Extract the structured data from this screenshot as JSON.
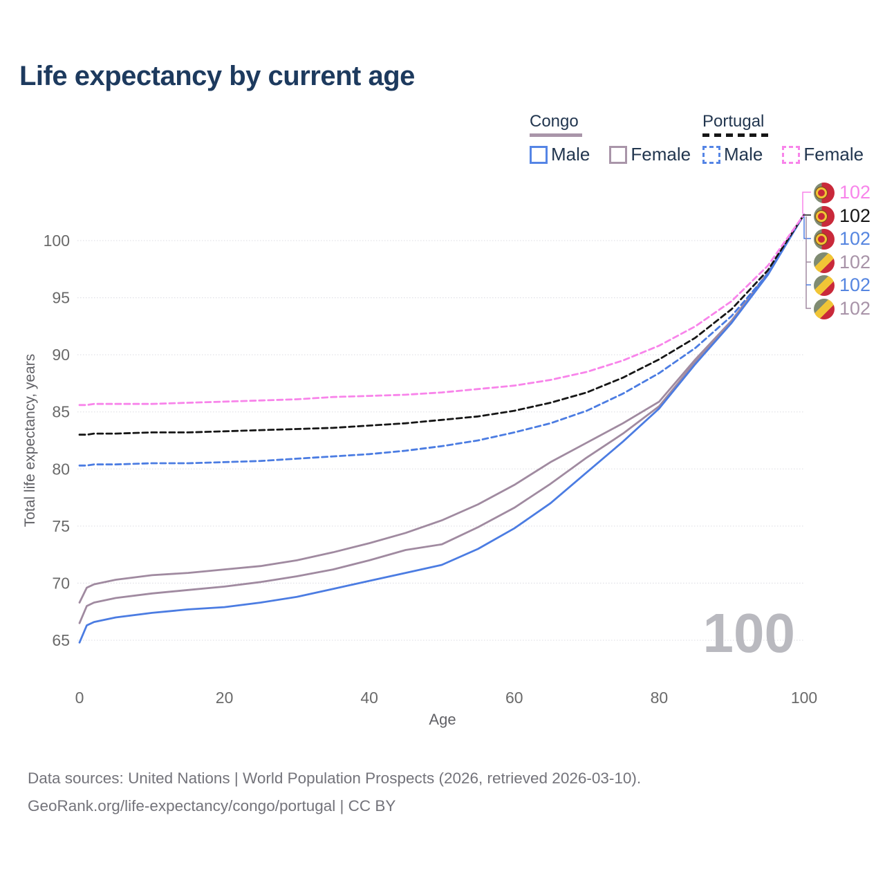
{
  "title": "Life expectancy by current age",
  "legend": {
    "congo": {
      "header": "Congo",
      "male": "Male",
      "female": "Female"
    },
    "portugal": {
      "header": "Portugal",
      "male": "Male",
      "female": "Female"
    }
  },
  "colors": {
    "blue": "#4b7ce2",
    "mauve": "#a08aa0",
    "pink": "#f884ea",
    "black": "#161616",
    "blue_label": "#5585e0",
    "mauve_label": "#a893a8",
    "grid": "#e2e2e7",
    "tick_text": "#6a6a6a",
    "title_text": "#1d3a5e",
    "watermark": "#b9b9bf",
    "flag_green": "#7f8b72",
    "flag_red": "#c9293a",
    "flag_yellow": "#f1c536"
  },
  "watermark": "100",
  "chart_data": {
    "type": "line",
    "title": "Life expectancy by current age",
    "xlabel": "Age",
    "ylabel": "Total life expectancy, years",
    "xlim": [
      0,
      100
    ],
    "ylim": [
      64,
      103
    ],
    "x_ticks": [
      0,
      20,
      40,
      60,
      80,
      100
    ],
    "y_ticks": [
      65,
      70,
      75,
      80,
      85,
      90,
      95,
      100
    ],
    "grid": "horizontal-dotted",
    "legend_position": "top-right",
    "ages": [
      0,
      1,
      2,
      5,
      10,
      15,
      20,
      25,
      30,
      35,
      40,
      45,
      50,
      55,
      60,
      65,
      70,
      75,
      80,
      85,
      90,
      95,
      100
    ],
    "series": [
      {
        "name": "Congo Female",
        "country": "Congo",
        "sex": "Female",
        "style": "solid",
        "color": "#a08aa0",
        "values": [
          68.3,
          69.6,
          69.9,
          70.3,
          70.7,
          70.9,
          71.2,
          71.5,
          72.0,
          72.7,
          73.5,
          74.4,
          75.5,
          76.9,
          78.6,
          80.6,
          82.3,
          84.0,
          85.9,
          89.6,
          93.0,
          97.2,
          102.3
        ]
      },
      {
        "name": "Congo",
        "country": "Congo",
        "sex": "Both",
        "style": "solid",
        "color": "#a08aa0",
        "values": [
          66.5,
          68.0,
          68.3,
          68.7,
          69.1,
          69.4,
          69.7,
          70.1,
          70.6,
          71.2,
          72.0,
          72.9,
          73.4,
          74.9,
          76.6,
          78.7,
          81.0,
          83.1,
          85.5,
          89.4,
          92.9,
          97.1,
          102.3
        ]
      },
      {
        "name": "Congo Male",
        "country": "Congo",
        "sex": "Male",
        "style": "solid",
        "color": "#4b7ce2",
        "values": [
          64.8,
          66.3,
          66.6,
          67.0,
          67.4,
          67.7,
          67.9,
          68.3,
          68.8,
          69.5,
          70.2,
          70.9,
          71.6,
          73.0,
          74.8,
          77.0,
          79.7,
          82.4,
          85.3,
          89.2,
          92.8,
          97.0,
          102.3
        ]
      },
      {
        "name": "Portugal Male",
        "country": "Portugal",
        "sex": "Male",
        "style": "dashed",
        "color": "#4b7ce2",
        "values": [
          80.3,
          80.3,
          80.4,
          80.4,
          80.5,
          80.5,
          80.6,
          80.7,
          80.9,
          81.1,
          81.3,
          81.6,
          82.0,
          82.5,
          83.2,
          84.0,
          85.1,
          86.6,
          88.4,
          90.6,
          93.4,
          97.1,
          102.3
        ]
      },
      {
        "name": "Portugal",
        "country": "Portugal",
        "sex": "Both",
        "style": "dashed",
        "color": "#161616",
        "values": [
          83.0,
          83.0,
          83.1,
          83.1,
          83.2,
          83.2,
          83.3,
          83.4,
          83.5,
          83.6,
          83.8,
          84.0,
          84.3,
          84.6,
          85.1,
          85.8,
          86.7,
          88.0,
          89.6,
          91.5,
          94.0,
          97.4,
          102.3
        ]
      },
      {
        "name": "Portugal Female",
        "country": "Portugal",
        "sex": "Female",
        "style": "dashed",
        "color": "#f884ea",
        "values": [
          85.6,
          85.6,
          85.7,
          85.7,
          85.7,
          85.8,
          85.9,
          86.0,
          86.1,
          86.3,
          86.4,
          86.5,
          86.7,
          87.0,
          87.3,
          87.8,
          88.5,
          89.5,
          90.8,
          92.5,
          94.7,
          97.8,
          102.3
        ]
      }
    ],
    "hover_age": "100"
  },
  "end_labels": {
    "rows": [
      {
        "series": "Portugal Female",
        "flag": "portugal",
        "value": "102",
        "color": "#f884ea"
      },
      {
        "series": "Portugal",
        "flag": "portugal",
        "value": "102",
        "color": "#161616"
      },
      {
        "series": "Portugal Male",
        "flag": "portugal",
        "value": "102",
        "color": "#5585e0"
      },
      {
        "series": "Congo Female",
        "flag": "congo",
        "value": "102",
        "color": "#a893a8"
      },
      {
        "series": "Congo Male",
        "flag": "congo",
        "value": "102",
        "color": "#5585e0"
      },
      {
        "series": "Congo",
        "flag": "congo",
        "value": "102",
        "color": "#a893a8"
      }
    ]
  },
  "axis": {
    "ylabel": "Total life expectancy, years",
    "xlabel": "Age"
  },
  "footer": {
    "line1": "Data sources: United Nations | World Population Prospects (2026, retrieved 2026-03-10).",
    "line2": "GeoRank.org/life-expectancy/congo/portugal | CC BY"
  }
}
